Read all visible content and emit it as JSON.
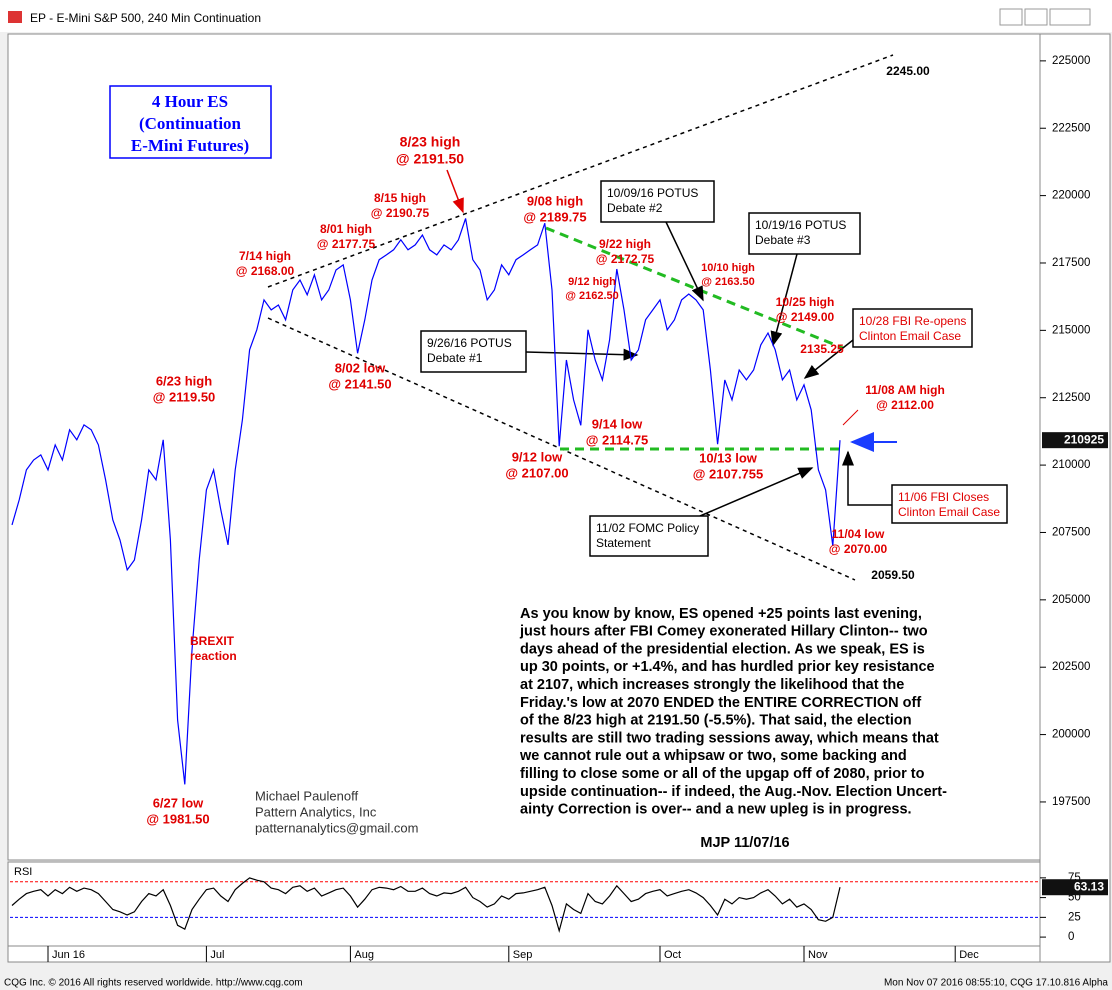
{
  "window": {
    "title": "EP - E-Mini S&P 500, 240 Min Continuation"
  },
  "footer": {
    "left": "CQG Inc. © 2016 All rights reserved worldwide. http://www.cqg.com",
    "right": "Mon Nov 07 2016 08:55:10, CQG 17.10.816 Alpha"
  },
  "chart_data": [
    {
      "type": "line",
      "series": [
        {
          "color": "#0000ff",
          "values": [
            207780,
            208710,
            209820,
            210190,
            210380,
            209820,
            210750,
            210190,
            211310,
            210940,
            211490,
            211310,
            210750,
            209450,
            207970,
            207220,
            206110,
            206480,
            207970,
            209820,
            209450,
            210940,
            207220,
            200540,
            198150,
            203140,
            206480,
            209080,
            209820,
            208340,
            207040,
            209820,
            211680,
            214280,
            215020,
            216130,
            215760,
            215940,
            215390,
            216500,
            216870,
            216320,
            217060,
            216130,
            216500,
            217240,
            217430,
            216130,
            214150,
            215390,
            216870,
            217620,
            217800,
            217990,
            218360,
            217990,
            218170,
            218540,
            217990,
            217800,
            218170,
            217990,
            218360,
            219150,
            217620,
            217240,
            216130,
            216500,
            217430,
            217060,
            217620,
            217800,
            217990,
            218170,
            218975,
            216500,
            210700,
            213900,
            212420,
            211475,
            215020,
            213900,
            213160,
            214650,
            217275,
            215760,
            213900,
            214280,
            215390,
            215760,
            216130,
            215020,
            215390,
            216130,
            216350,
            216130,
            215760,
            213530,
            210775,
            213160,
            212420,
            213530,
            213160,
            213530,
            214460,
            214900,
            214280,
            213160,
            213530,
            212420,
            212980,
            212050,
            209820,
            209080,
            207000,
            210925,
            null,
            null,
            null,
            null,
            null,
            null,
            null,
            null,
            null,
            null,
            null,
            null,
            null,
            null,
            null,
            null
          ]
        }
      ],
      "ylim": [
        195420,
        225960
      ],
      "yticks": [
        197500,
        200000,
        202500,
        205000,
        207500,
        210000,
        212500,
        215000,
        217500,
        220000,
        222500,
        225000
      ],
      "label_box": {
        "lines": [
          "4 Hour ES",
          "(Continuation",
          "E-Mini Futures)"
        ],
        "color": "#0000ff"
      },
      "annotations": [
        {
          "lines": [
            "8/23 high",
            "@ 2191.50"
          ],
          "color": "#e00000"
        },
        {
          "lines": [
            "8/15 high",
            "@ 2190.75"
          ],
          "color": "#e00000"
        },
        {
          "lines": [
            "8/01 high",
            "@ 2177.75"
          ],
          "color": "#e00000"
        },
        {
          "lines": [
            "7/14 high",
            "@ 2168.00"
          ],
          "color": "#e00000"
        },
        {
          "lines": [
            "6/23 high",
            "@ 2119.50"
          ],
          "color": "#e00000"
        },
        {
          "lines": [
            "8/02 low",
            "@ 2141.50"
          ],
          "color": "#e00000"
        },
        {
          "lines": [
            "9/08 high",
            "@ 2189.75"
          ],
          "color": "#e00000"
        },
        {
          "lines": [
            "9/22 high",
            "@ 2172.75"
          ],
          "color": "#e00000"
        },
        {
          "lines": [
            "9/12 high",
            "@ 2162.50"
          ],
          "color": "#e00000"
        },
        {
          "lines": [
            "10/10 high",
            "@ 2163.50"
          ],
          "color": "#e00000"
        },
        {
          "lines": [
            "10/25 high",
            "@ 2149.00"
          ],
          "color": "#e00000"
        },
        {
          "lines": [
            "2135.25"
          ],
          "color": "#e00000"
        },
        {
          "lines": [
            "9/14 low",
            "@ 2114.75"
          ],
          "color": "#e00000"
        },
        {
          "lines": [
            "9/12 low",
            "@ 2107.00"
          ],
          "color": "#e00000"
        },
        {
          "lines": [
            "10/13 low",
            "@ 2107.755"
          ],
          "color": "#e00000"
        },
        {
          "lines": [
            "11/08 AM high",
            "@ 2112.00"
          ],
          "color": "#e00000"
        },
        {
          "lines": [
            "11/04 low",
            "@ 2070.00"
          ],
          "color": "#e00000"
        },
        {
          "lines": [
            "6/27 low",
            "@ 1981.50"
          ],
          "color": "#e00000"
        },
        {
          "lines": [
            "BREXIT",
            "reaction"
          ],
          "color": "#e00000"
        },
        {
          "lines": [
            "2245.00"
          ],
          "color": "#000000"
        },
        {
          "lines": [
            "2059.50"
          ],
          "color": "#000000"
        }
      ],
      "callouts": [
        {
          "lines": [
            "10/09/16 POTUS",
            "Debate #2"
          ],
          "color": "#000000"
        },
        {
          "lines": [
            "10/19/16 POTUS",
            "Debate #3"
          ],
          "color": "#000000"
        },
        {
          "lines": [
            "9/26/16 POTUS",
            "Debate #1"
          ],
          "color": "#000000"
        },
        {
          "lines": [
            "11/02 FOMC Policy",
            "Statement"
          ],
          "color": "#000000"
        },
        {
          "lines": [
            "10/28 FBI Re-opens",
            "Clinton Email Case"
          ],
          "color": "#e00000"
        },
        {
          "lines": [
            "11/06 FBI Closes",
            "Clinton Email Case"
          ],
          "color": "#e00000"
        }
      ],
      "author": [
        "Michael Paulenoff",
        "Pattern Analytics, Inc",
        "patternanalytics@gmail.com"
      ],
      "commentary": {
        "lines": [
          "As you know by know, ES opened +25 points last evening,",
          "just hours after FBI Comey exonerated Hillary Clinton-- two",
          "days ahead of the presidential election. As we speak, ES is",
          "up 30 points, or +1.4%, and has hurdled prior key resistance",
          "at 2107, which increases strongly the likelihood that the",
          "Friday.'s low at 2070 ENDED the ENTIRE CORRECTION off",
          "of the 8/23 high at 2191.50 (-5.5%). That said, the election",
          "results are still two trading sessions away, which means that",
          "we cannot rule out a whipsaw or two, some backing and",
          "filling to close some or all of the upgap off of 2080, prior to",
          "upside continuation-- if indeed, the Aug.-Nov. Election Uncert-",
          "ainty Correction is over-- and a new upleg is in progress."
        ],
        "signature": "MJP 11/07/16"
      }
    },
    {
      "type": "line",
      "title": "RSI",
      "categories": [
        null,
        null,
        null,
        null,
        null,
        "Jun 16",
        null,
        null,
        null,
        null,
        null,
        null,
        null,
        null,
        null,
        null,
        null,
        null,
        null,
        null,
        null,
        null,
        null,
        null,
        null,
        null,
        null,
        "Jul",
        null,
        null,
        null,
        null,
        null,
        null,
        null,
        null,
        null,
        null,
        null,
        null,
        null,
        null,
        null,
        null,
        null,
        null,
        null,
        "Aug",
        null,
        null,
        null,
        null,
        null,
        null,
        null,
        null,
        null,
        null,
        null,
        null,
        null,
        null,
        null,
        null,
        null,
        null,
        null,
        null,
        null,
        "Sep",
        null,
        null,
        null,
        null,
        null,
        null,
        null,
        null,
        null,
        null,
        null,
        null,
        null,
        null,
        null,
        null,
        null,
        null,
        null,
        null,
        "Oct",
        null,
        null,
        null,
        null,
        null,
        null,
        null,
        null,
        null,
        null,
        null,
        null,
        null,
        null,
        null,
        null,
        null,
        null,
        null,
        "Nov",
        null,
        null,
        null,
        null,
        null,
        null,
        null,
        null,
        null,
        null,
        null,
        null,
        null,
        null,
        null,
        null,
        null,
        null,
        null,
        null,
        "Dec"
      ],
      "series": [
        {
          "color": "#000000",
          "values": [
            40,
            48,
            55,
            58,
            60,
            52,
            60,
            55,
            63,
            58,
            62,
            60,
            55,
            45,
            35,
            32,
            28,
            32,
            45,
            55,
            52,
            60,
            40,
            15,
            10,
            35,
            48,
            60,
            62,
            52,
            45,
            60,
            68,
            75,
            72,
            70,
            62,
            60,
            55,
            63,
            65,
            58,
            62,
            52,
            56,
            60,
            62,
            52,
            38,
            48,
            60,
            63,
            62,
            60,
            64,
            58,
            58,
            62,
            55,
            52,
            56,
            55,
            58,
            63,
            50,
            45,
            38,
            42,
            52,
            48,
            55,
            56,
            58,
            60,
            63,
            40,
            8,
            42,
            35,
            30,
            55,
            45,
            42,
            52,
            65,
            55,
            45,
            48,
            55,
            58,
            60,
            52,
            55,
            58,
            60,
            56,
            50,
            40,
            28,
            48,
            42,
            50,
            48,
            50,
            56,
            60,
            52,
            42,
            48,
            38,
            42,
            35,
            22,
            20,
            25,
            63.13,
            null,
            null,
            null,
            null,
            null,
            null,
            null,
            null,
            null,
            null,
            null,
            null,
            null,
            null,
            null,
            null
          ]
        }
      ],
      "ylim": [
        -10,
        90
      ],
      "yticks": [
        0,
        25,
        50,
        75
      ],
      "levels": [
        {
          "value": 70,
          "color": "#ff0000"
        },
        {
          "value": 25,
          "color": "#0000ff"
        }
      ]
    }
  ]
}
